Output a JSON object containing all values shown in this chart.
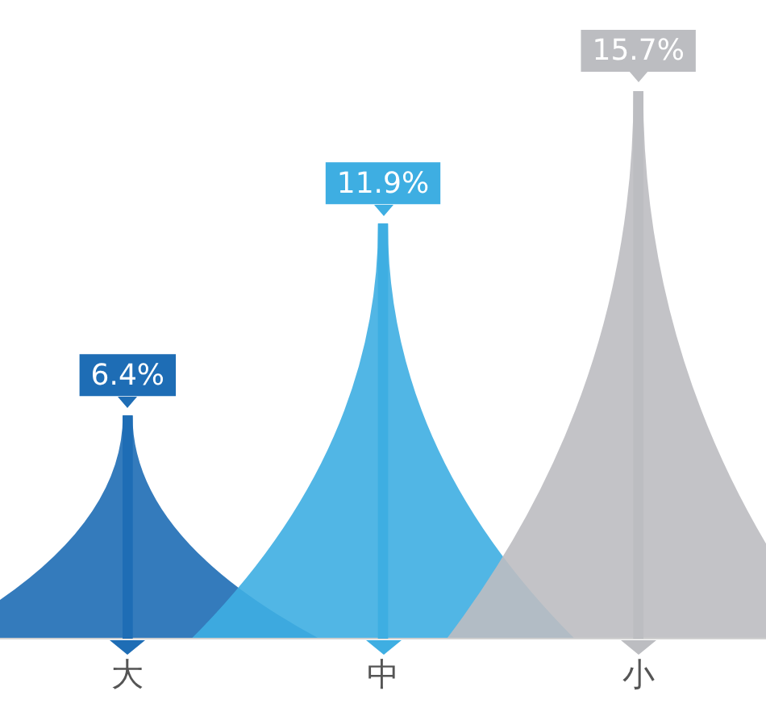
{
  "chart_data": {
    "type": "bar",
    "categories": [
      "大",
      "中",
      "小"
    ],
    "values": [
      6.4,
      11.9,
      15.7
    ],
    "colors": [
      "#1e6db5",
      "#3eaee2",
      "#bcbdc1"
    ],
    "data_labels": true,
    "value_labels": [
      "6.4%",
      "11.9%",
      "15.7%"
    ],
    "grid": false,
    "legend": false
  }
}
